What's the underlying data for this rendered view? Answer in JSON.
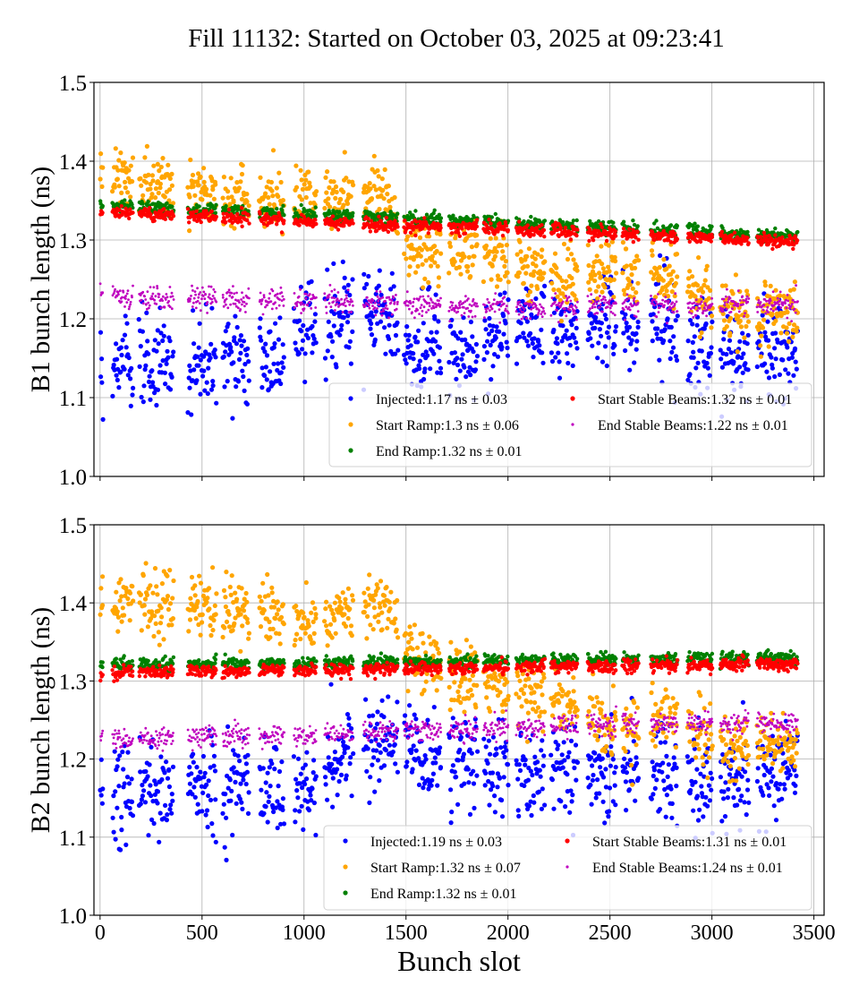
{
  "title": "Fill 11132: Started on October 03, 2025 at 09:23:41",
  "colors": {
    "Injected": "#0000ff",
    "Start Ramp": "#ffa500",
    "End Ramp": "#008000",
    "Start Stable Beams": "#ff0000",
    "End Stable Beams": "#bf00bf"
  },
  "chart_data": [
    {
      "type": "scatter",
      "ylabel": "B1 bunch length (ns)",
      "xlabel": "",
      "xlim": [
        -30,
        3550
      ],
      "ylim": [
        1.0,
        1.5
      ],
      "xticks": [
        "0",
        "500",
        "1000",
        "1500",
        "2000",
        "2500",
        "3000",
        "3500"
      ],
      "yticks": [
        "1.0",
        "1.1",
        "1.2",
        "1.3",
        "1.4",
        "1.5"
      ],
      "grid": true,
      "legend_position": "lower-right",
      "filled_slot_ranges": [
        [
          0,
          12
        ],
        [
          60,
          160
        ],
        [
          190,
          360
        ],
        [
          430,
          570
        ],
        [
          600,
          730
        ],
        [
          780,
          900
        ],
        [
          950,
          1060
        ],
        [
          1100,
          1240
        ],
        [
          1290,
          1460
        ],
        [
          1490,
          1670
        ],
        [
          1710,
          1850
        ],
        [
          1880,
          2000
        ],
        [
          2040,
          2180
        ],
        [
          2210,
          2340
        ],
        [
          2390,
          2530
        ],
        [
          2560,
          2640
        ],
        [
          2700,
          2830
        ],
        [
          2880,
          3000
        ],
        [
          3040,
          3180
        ],
        [
          3220,
          3420
        ]
      ],
      "series": [
        {
          "name": "Injected",
          "legend": "Injected:1.17 ns ± 0.03",
          "spread": 0.03,
          "trend": [
            [
              0,
              1.15
            ],
            [
              900,
              1.15
            ],
            [
              1000,
              1.19
            ],
            [
              1450,
              1.2
            ],
            [
              1500,
              1.16
            ],
            [
              1900,
              1.16
            ],
            [
              2000,
              1.19
            ],
            [
              2500,
              1.19
            ],
            [
              2750,
              1.2
            ],
            [
              3000,
              1.16
            ],
            [
              3400,
              1.16
            ]
          ]
        },
        {
          "name": "Start Ramp",
          "legend": "Start Ramp:1.3 ns ± 0.06",
          "spread": 0.02,
          "trend": [
            [
              0,
              1.39
            ],
            [
              300,
              1.37
            ],
            [
              700,
              1.35
            ],
            [
              1400,
              1.36
            ],
            [
              1500,
              1.29
            ],
            [
              2000,
              1.27
            ],
            [
              2300,
              1.25
            ],
            [
              2500,
              1.26
            ],
            [
              2800,
              1.25
            ],
            [
              3000,
              1.22
            ],
            [
              3200,
              1.2
            ],
            [
              3400,
              1.22
            ]
          ]
        },
        {
          "name": "End Ramp",
          "legend": "End Ramp:1.32 ns ± 0.01",
          "spread": 0.004,
          "trend": [
            [
              0,
              1.345
            ],
            [
              3400,
              1.305
            ]
          ]
        },
        {
          "name": "Start Stable Beams",
          "legend": "Start Stable Beams:1.32 ns ± 0.01",
          "spread": 0.004,
          "trend": [
            [
              0,
              1.335
            ],
            [
              3400,
              1.298
            ]
          ]
        },
        {
          "name": "End Stable Beams",
          "legend": "End Stable Beams:1.22 ns ± 0.01",
          "spread": 0.007,
          "trend": [
            [
              0,
              1.23
            ],
            [
              2000,
              1.215
            ],
            [
              3400,
              1.22
            ]
          ]
        }
      ]
    },
    {
      "type": "scatter",
      "ylabel": "B2 bunch length (ns)",
      "xlabel": "Bunch slot",
      "xlim": [
        -30,
        3550
      ],
      "ylim": [
        1.0,
        1.5
      ],
      "xticks": [
        "0",
        "500",
        "1000",
        "1500",
        "2000",
        "2500",
        "3000",
        "3500"
      ],
      "yticks": [
        "1.0",
        "1.1",
        "1.2",
        "1.3",
        "1.4",
        "1.5"
      ],
      "grid": true,
      "legend_position": "lower-right",
      "filled_slot_ranges": [
        [
          0,
          12
        ],
        [
          60,
          160
        ],
        [
          190,
          360
        ],
        [
          430,
          570
        ],
        [
          600,
          730
        ],
        [
          780,
          900
        ],
        [
          950,
          1060
        ],
        [
          1100,
          1240
        ],
        [
          1290,
          1460
        ],
        [
          1490,
          1670
        ],
        [
          1710,
          1850
        ],
        [
          1880,
          2000
        ],
        [
          2040,
          2180
        ],
        [
          2210,
          2340
        ],
        [
          2390,
          2530
        ],
        [
          2560,
          2640
        ],
        [
          2700,
          2830
        ],
        [
          2880,
          3000
        ],
        [
          3040,
          3180
        ],
        [
          3220,
          3420
        ]
      ],
      "series": [
        {
          "name": "Injected",
          "legend": "Injected:1.19 ns ± 0.03",
          "spread": 0.03,
          "trend": [
            [
              0,
              1.15
            ],
            [
              500,
              1.17
            ],
            [
              1000,
              1.17
            ],
            [
              1300,
              1.22
            ],
            [
              1450,
              1.23
            ],
            [
              1600,
              1.19
            ],
            [
              2200,
              1.19
            ],
            [
              2500,
              1.18
            ],
            [
              2800,
              1.19
            ],
            [
              3000,
              1.17
            ],
            [
              3400,
              1.18
            ]
          ]
        },
        {
          "name": "Start Ramp",
          "legend": "Start Ramp:1.32 ns ± 0.07",
          "spread": 0.02,
          "trend": [
            [
              0,
              1.4
            ],
            [
              800,
              1.39
            ],
            [
              1000,
              1.37
            ],
            [
              1400,
              1.4
            ],
            [
              1550,
              1.33
            ],
            [
              1800,
              1.3
            ],
            [
              2100,
              1.29
            ],
            [
              2300,
              1.27
            ],
            [
              2500,
              1.24
            ],
            [
              2800,
              1.26
            ],
            [
              3000,
              1.22
            ],
            [
              3400,
              1.22
            ]
          ]
        },
        {
          "name": "End Ramp",
          "legend": "End Ramp:1.32 ns ± 0.01",
          "spread": 0.004,
          "trend": [
            [
              0,
              1.32
            ],
            [
              3400,
              1.33
            ]
          ]
        },
        {
          "name": "Start Stable Beams",
          "legend": "Start Stable Beams:1.31 ns ± 0.01",
          "spread": 0.004,
          "trend": [
            [
              0,
              1.31
            ],
            [
              3400,
              1.322
            ]
          ]
        },
        {
          "name": "End Stable Beams",
          "legend": "End Stable Beams:1.24 ns ± 0.01",
          "spread": 0.007,
          "trend": [
            [
              0,
              1.225
            ],
            [
              1500,
              1.235
            ],
            [
              2500,
              1.245
            ],
            [
              3400,
              1.245
            ]
          ]
        }
      ]
    }
  ]
}
